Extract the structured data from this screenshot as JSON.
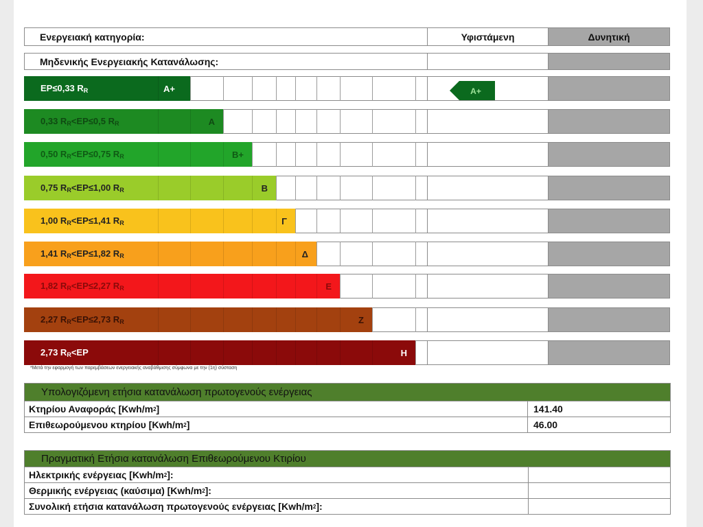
{
  "header": {
    "category_label": "Ενεργειακή κατηγορία:",
    "existing_label": "Υφιστάμενη",
    "potential_label": "Δυνητική"
  },
  "zero_energy_label": "Μηδενικής Ενεργειακής Κατανάλωσης:",
  "classes": [
    {
      "range": "EP≤0,33 R",
      "range_sub": "R",
      "range_tail": "",
      "letter": "A+",
      "color": "#0b6a1e",
      "text_color": "#ffffff"
    },
    {
      "range": "0,33 R",
      "range_sub": "R",
      "range_tail": "<EP≤0,5 R",
      "letter": "A",
      "color": "#1d8a22",
      "text_color": "#0f4a12"
    },
    {
      "range": "0,50 R",
      "range_sub": "R",
      "range_tail": "<EP≤0,75 R",
      "letter": "B+",
      "color": "#22a52a",
      "text_color": "#0f5a14"
    },
    {
      "range": "0,75 R",
      "range_sub": "R",
      "range_tail": "<EP≤1,00 R",
      "letter": "B",
      "color": "#9acc2a",
      "text_color": "#222"
    },
    {
      "range": "1,00 R",
      "range_sub": "R",
      "range_tail": "<EP≤1,41 R",
      "letter": "Γ",
      "color": "#f9c21c",
      "text_color": "#222"
    },
    {
      "range": "1,41 R",
      "range_sub": "R",
      "range_tail": "<EP≤1,82 R",
      "letter": "Δ",
      "color": "#f8a01c",
      "text_color": "#222"
    },
    {
      "range": "1,82 R",
      "range_sub": "R",
      "range_tail": "<EP≤2,27 R",
      "letter": "Ε",
      "color": "#f3171b",
      "text_color": "#8a0a0a"
    },
    {
      "range": "2,27 R",
      "range_sub": "R",
      "range_tail": "<EP≤2,73 R",
      "letter": "Ζ",
      "color": "#a3410f",
      "text_color": "#3a1205"
    },
    {
      "range": "2,73 R",
      "range_sub": "R",
      "range_tail": "<EP",
      "letter": "Η",
      "color": "#8b0a0a",
      "text_color": "#ffffff"
    }
  ],
  "existing_rating": {
    "letter": "A+",
    "color": "#0b6a1e"
  },
  "footnote": "*Μετά την εφαρμογή των παρεμβάσεων ενεργειακής αναβάθμισης σύμφωνα με την (1η) σύσταση",
  "calculated": {
    "title": "Υπολογιζόμενη ετήσια κατανάλωση πρωτογενούς ενέργειας",
    "rows": [
      {
        "label": "Κτηρίου Αναφοράς [Kwh/m",
        "sup": "2",
        "tail": "]",
        "value": "141.40"
      },
      {
        "label": "Επιθεωρούμενου κτηρίου [Kwh/m",
        "sup": "2",
        "tail": "]",
        "value": "46.00"
      }
    ]
  },
  "actual": {
    "title": "Πραγματική Ετήσια κατανάλωση Επιθεωρούμενου Κτιρίου",
    "rows": [
      {
        "label": "Ηλεκτρικής ενέργειας [Kwh/m",
        "sup": "2",
        "tail": "]:",
        "value": ""
      },
      {
        "label": "Θερμικής ενέργειας (καύσιμα) [Kwh/m",
        "sup": "2",
        "tail": "]:",
        "value": ""
      },
      {
        "label": "Συνολική ετήσια κατανάλωση πρωτογενούς ενέργειας [Kwh/m",
        "sup": "2",
        "tail": "]:",
        "value": ""
      }
    ]
  }
}
